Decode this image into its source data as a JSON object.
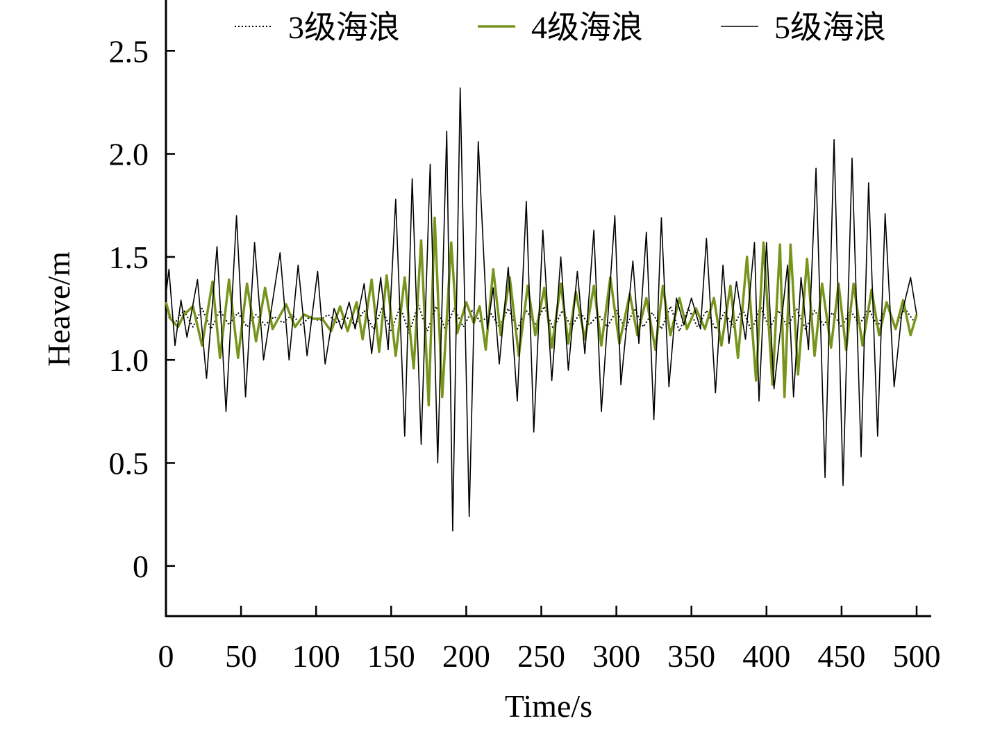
{
  "chart_data": {
    "type": "line",
    "xlabel": "Time/s",
    "ylabel": "Heave/m",
    "xlim": [
      0,
      510
    ],
    "ylim": [
      -0.24,
      2.75
    ],
    "xticks": [
      0,
      50,
      100,
      150,
      200,
      250,
      300,
      350,
      400,
      450,
      500
    ],
    "yticks": [
      0,
      0.5,
      {
        "value": 1,
        "label": "1.0"
      },
      1.5,
      {
        "value": 2,
        "label": "2.0"
      },
      2.5
    ],
    "grid": false,
    "legend": "top",
    "series": [
      {
        "name": "3级海浪",
        "color": "#000000",
        "linestyle": "dotted",
        "x": [
          0,
          6,
          12,
          18,
          24,
          30,
          36,
          42,
          48,
          54,
          60,
          66,
          72,
          78,
          84,
          90,
          96,
          102,
          108,
          114,
          120,
          126,
          132,
          138,
          144,
          150,
          156,
          162,
          168,
          174,
          180,
          186,
          192,
          198,
          204,
          210,
          216,
          222,
          228,
          234,
          240,
          246,
          252,
          258,
          264,
          270,
          276,
          282,
          288,
          294,
          300,
          306,
          312,
          318,
          324,
          330,
          336,
          342,
          348,
          354,
          360,
          366,
          372,
          378,
          384,
          390,
          396,
          402,
          408,
          414,
          420,
          426,
          432,
          438,
          444,
          450,
          456,
          462,
          468,
          474,
          480,
          486,
          492,
          498,
          500
        ],
        "values": [
          1.22,
          1.18,
          1.24,
          1.16,
          1.25,
          1.15,
          1.24,
          1.17,
          1.23,
          1.16,
          1.22,
          1.17,
          1.21,
          1.18,
          1.22,
          1.17,
          1.21,
          1.19,
          1.22,
          1.18,
          1.21,
          1.17,
          1.24,
          1.15,
          1.25,
          1.14,
          1.26,
          1.13,
          1.27,
          1.14,
          1.26,
          1.15,
          1.25,
          1.16,
          1.24,
          1.18,
          1.23,
          1.16,
          1.25,
          1.15,
          1.24,
          1.17,
          1.26,
          1.15,
          1.24,
          1.16,
          1.23,
          1.17,
          1.22,
          1.16,
          1.24,
          1.15,
          1.25,
          1.16,
          1.23,
          1.15,
          1.26,
          1.14,
          1.25,
          1.16,
          1.24,
          1.15,
          1.23,
          1.16,
          1.25,
          1.14,
          1.26,
          1.15,
          1.24,
          1.16,
          1.25,
          1.15,
          1.24,
          1.17,
          1.23,
          1.16,
          1.24,
          1.17,
          1.25,
          1.16,
          1.27,
          1.16,
          1.25,
          1.19,
          1.21
        ]
      },
      {
        "name": "4级海浪",
        "color": "#77941d",
        "linestyle": "solid",
        "x": [
          0,
          3,
          8,
          12,
          18,
          24,
          31,
          36,
          42,
          48,
          54,
          60,
          66,
          71,
          80,
          86,
          92,
          98,
          104,
          110,
          116,
          121,
          127,
          131,
          137,
          142,
          147,
          153,
          159,
          165,
          170,
          175,
          179,
          184,
          190,
          194,
          200,
          205,
          209,
          213,
          218,
          223,
          229,
          235,
          241,
          246,
          252,
          257,
          263,
          268,
          273,
          279,
          285,
          290,
          296,
          302,
          309,
          314,
          320,
          326,
          331,
          336,
          342,
          347,
          353,
          359,
          365,
          370,
          376,
          381,
          387,
          393,
          398,
          404,
          409,
          412,
          416,
          421,
          427,
          432,
          437,
          443,
          448,
          453,
          458,
          464,
          470,
          475,
          480,
          486,
          491,
          496,
          500
        ],
        "values": [
          1.28,
          1.2,
          1.16,
          1.22,
          1.26,
          1.07,
          1.38,
          1.01,
          1.39,
          1.01,
          1.37,
          1.09,
          1.35,
          1.15,
          1.27,
          1.16,
          1.22,
          1.2,
          1.2,
          1.14,
          1.26,
          1.14,
          1.28,
          1.1,
          1.39,
          1.04,
          1.41,
          1.02,
          1.4,
          0.96,
          1.58,
          0.78,
          1.69,
          0.82,
          1.57,
          1.13,
          1.28,
          1.18,
          1.26,
          1.05,
          1.44,
          1.12,
          1.4,
          1.02,
          1.36,
          1.12,
          1.35,
          1.06,
          1.37,
          1.08,
          1.33,
          1.1,
          1.36,
          1.07,
          1.4,
          1.08,
          1.32,
          1.12,
          1.3,
          1.05,
          1.36,
          1.12,
          1.3,
          1.15,
          1.25,
          1.15,
          1.3,
          1.07,
          1.36,
          1.01,
          1.5,
          0.9,
          1.57,
          0.88,
          1.56,
          0.82,
          1.56,
          0.93,
          1.49,
          1.02,
          1.37,
          1.06,
          1.37,
          1.05,
          1.37,
          1.07,
          1.34,
          1.12,
          1.28,
          1.15,
          1.29,
          1.12,
          1.22
        ]
      },
      {
        "name": "5级海浪",
        "color": "#000000",
        "linestyle": "solid",
        "x": [
          0,
          2,
          6,
          10,
          14,
          21,
          27,
          34,
          40,
          47,
          53,
          59,
          65,
          76,
          82,
          88,
          94,
          101,
          106,
          112,
          117,
          122,
          126,
          132,
          137,
          143,
          148,
          153,
          159,
          164,
          170,
          176,
          181,
          187,
          191,
          196,
          202,
          208,
          214,
          218,
          222,
          228,
          234,
          240,
          245,
          251,
          257,
          263,
          268,
          274,
          279,
          285,
          290,
          299,
          303,
          311,
          315,
          320,
          325,
          330,
          335,
          340,
          345,
          350,
          356,
          360,
          366,
          371,
          375,
          380,
          386,
          392,
          395,
          400,
          405,
          414,
          418,
          423,
          428,
          433,
          439,
          445,
          451,
          457,
          463,
          468,
          474,
          479,
          485,
          490,
          496,
          500
        ],
        "values": [
          1.32,
          1.44,
          1.07,
          1.29,
          1.11,
          1.39,
          0.91,
          1.55,
          0.75,
          1.7,
          0.82,
          1.57,
          1.0,
          1.52,
          1.0,
          1.46,
          1.02,
          1.43,
          0.98,
          1.25,
          1.15,
          1.28,
          1.15,
          1.37,
          1.03,
          1.4,
          1.05,
          1.78,
          0.63,
          1.88,
          0.59,
          1.95,
          0.5,
          2.11,
          0.17,
          2.32,
          0.24,
          2.06,
          1.15,
          1.35,
          0.98,
          1.45,
          0.8,
          1.77,
          0.65,
          1.63,
          0.9,
          1.5,
          0.95,
          1.43,
          1.03,
          1.63,
          0.75,
          1.7,
          0.88,
          1.48,
          1.08,
          1.62,
          0.71,
          1.69,
          0.87,
          1.3,
          1.17,
          1.3,
          1.15,
          1.59,
          0.84,
          1.46,
          1.08,
          1.38,
          1.1,
          1.57,
          0.8,
          1.57,
          0.86,
          1.46,
          0.82,
          1.4,
          1.05,
          1.93,
          0.43,
          2.07,
          0.39,
          1.98,
          0.53,
          1.86,
          0.63,
          1.71,
          0.87,
          1.22,
          1.4,
          1.22
        ]
      }
    ]
  }
}
